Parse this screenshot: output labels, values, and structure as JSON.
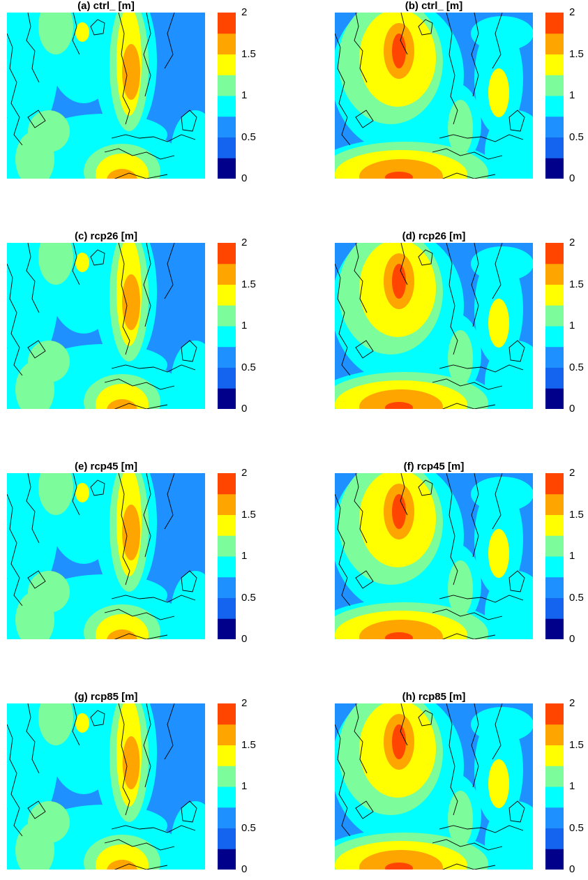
{
  "figure": {
    "panels": [
      {
        "title": "(a) ctrl_ [m]"
      },
      {
        "title": "(b) ctrl_ [m]"
      },
      {
        "title": "(c) rcp26 [m]"
      },
      {
        "title": "(d) rcp26 [m]"
      },
      {
        "title": "(e) rcp45 [m]"
      },
      {
        "title": "(f) rcp45 [m]"
      },
      {
        "title": "(g) rcp85 [m]"
      },
      {
        "title": "(h) rcp85 [m]"
      }
    ],
    "colorbar_ticks": [
      "2",
      "1.5",
      "1",
      "0.5",
      "0"
    ]
  },
  "chart_data": {
    "type": "heatmap",
    "subtype": "filled-contour maps",
    "layout": "4 rows x 2 columns",
    "unit": "m",
    "color_scale": {
      "range": [
        0,
        2
      ],
      "step": 0.25,
      "levels": [
        0,
        0.25,
        0.5,
        0.75,
        1.0,
        1.25,
        1.5,
        1.75,
        2.0
      ],
      "colors": [
        "#00008b",
        "#0000ff",
        "#1464f0",
        "#1e90ff",
        "#00ffff",
        "#7cfc9a",
        "#ffff00",
        "#ffa500",
        "#ff4500"
      ],
      "ticks": [
        0,
        0.5,
        1,
        1.5,
        2
      ]
    },
    "coastlines": true,
    "panels": [
      {
        "label": "(a) ctrl_ [m]",
        "max_value": 1.75
      },
      {
        "label": "(b) ctrl_ [m]",
        "max_value": 2.0
      },
      {
        "label": "(c) rcp26 [m]",
        "max_value": 1.75
      },
      {
        "label": "(d) rcp26 [m]",
        "max_value": 2.0
      },
      {
        "label": "(e) rcp45 [m]",
        "max_value": 1.75
      },
      {
        "label": "(f) rcp45 [m]",
        "max_value": 2.0
      },
      {
        "label": "(g) rcp85 [m]",
        "max_value": 1.75
      },
      {
        "label": "(h) rcp85 [m]",
        "max_value": 2.0
      }
    ]
  }
}
